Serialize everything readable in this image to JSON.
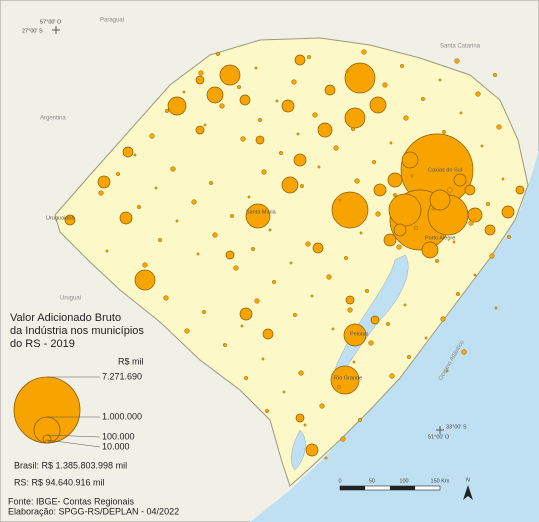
{
  "map": {
    "places": [
      "Paraguai",
      "Santa Catarina",
      "Argentina",
      "Uruguai",
      "Oceano Atlântico"
    ],
    "cities": [
      "Caxias do Sul",
      "Porto Alegre",
      "Santa Maria",
      "Uruguaiana",
      "Pelotas",
      "Rio Grande"
    ],
    "coords": {
      "nw_lon": "57°00' O",
      "nw_lat": "27°00' S",
      "se_lat": "33°00' S",
      "se_lon": "51°00' O"
    },
    "legend": {
      "title": [
        "Valor Adicionado Bruto",
        "da Indústria nos municípios",
        "do RS - 2019"
      ],
      "unit": "R$ mil",
      "items": [
        "7.271.690",
        "1.000.000",
        "100.000",
        "10.000"
      ],
      "brasil": "Brasil: R$ 1.385.803.998 mil",
      "rs": "RS: R$ 94.640.916 mil"
    },
    "source": "Fonte: IBGE- Contas Regionais",
    "credit": "Elaboração: SPGG-RS/DEPLAN - 04/2022",
    "scale": [
      "0",
      "50",
      "100",
      "150 Km"
    ],
    "north": "N"
  }
}
